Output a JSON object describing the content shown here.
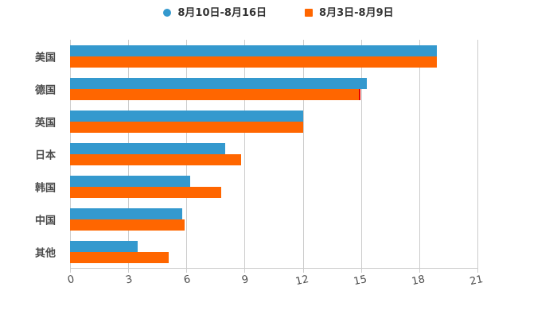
{
  "legend": {
    "items": [
      {
        "label": "8月10日-8月16日",
        "marker": "circle",
        "color": "#3499CE"
      },
      {
        "label": "8月3日-8月9日",
        "marker": "square",
        "color": "#FF6600"
      }
    ]
  },
  "chart_data": {
    "type": "bar",
    "orientation": "horizontal",
    "title": "",
    "xlabel": "",
    "ylabel": "",
    "categories": [
      "美国",
      "德国",
      "英国",
      "日本",
      "韩国",
      "中国",
      "其他"
    ],
    "series": [
      {
        "name": "8月10日-8月16日",
        "color": "#3499CE",
        "marker": "circle",
        "values": [
          18.9,
          15.3,
          12.0,
          8.0,
          6.2,
          5.8,
          3.5
        ]
      },
      {
        "name": "8月3日-8月9日",
        "color": "#FF6600",
        "marker": "square",
        "values": [
          18.9,
          14.9,
          12.0,
          8.8,
          7.8,
          5.9,
          5.1
        ]
      }
    ],
    "x_ticks": [
      0,
      3,
      6,
      9,
      12,
      15,
      18,
      21
    ],
    "xlim": [
      0,
      21
    ],
    "grid": true,
    "legend_position": "top-center",
    "annotations": [
      {
        "type": "red-edge",
        "category": "德国",
        "series": "8月3日-8月9日",
        "color": "#E60000"
      }
    ],
    "colors": {
      "gridline": "#cccccc",
      "axis_line": "#cccccc",
      "tick_label": "#4d4d4d",
      "category_label": "#4a4a4a",
      "legend_text": "#333333",
      "background": "#ffffff"
    }
  }
}
